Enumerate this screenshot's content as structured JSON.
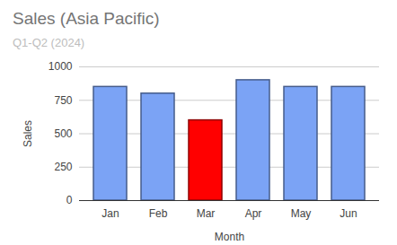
{
  "chart_data": {
    "type": "bar",
    "title": "Sales (Asia Pacific)",
    "subtitle": "Q1-Q2 (2024)",
    "x_label": "Month",
    "y_label": "Sales",
    "categories": [
      "Jan",
      "Feb",
      "Mar",
      "Apr",
      "May",
      "Jun"
    ],
    "values": [
      850,
      800,
      600,
      900,
      850,
      850
    ],
    "colors": [
      "#7ba3f5",
      "#7ba3f5",
      "#ff0000",
      "#7ba3f5",
      "#7ba3f5",
      "#7ba3f5"
    ],
    "ylim": [
      0,
      1000
    ],
    "yticks": [
      0,
      250,
      500,
      750,
      1000
    ],
    "grid": true
  }
}
